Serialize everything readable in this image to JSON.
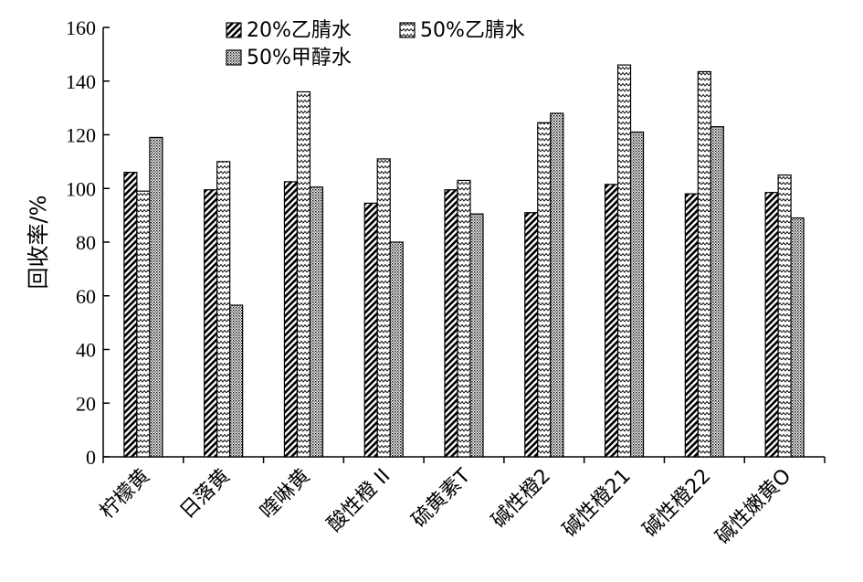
{
  "chart_data": {
    "type": "bar",
    "title": "",
    "xlabel": "",
    "ylabel": "回收率/%",
    "ylim": [
      0,
      160
    ],
    "yticks": [
      0,
      20,
      40,
      60,
      80,
      100,
      120,
      140,
      160
    ],
    "grid": false,
    "legend_position": "top",
    "categories": [
      "柠檬黄",
      "日落黄",
      "喹啉黄",
      "酸性橙 II",
      "硫黄素T",
      "碱性橙2",
      "碱性橙21",
      "碱性橙22",
      "碱性嫩黄O"
    ],
    "series": [
      {
        "name": "20%乙腈水",
        "pattern": "diagonal-hatch",
        "values": [
          106,
          99.5,
          102.5,
          94.5,
          99.5,
          91,
          101.5,
          98,
          98.5
        ]
      },
      {
        "name": "50%乙腈水",
        "pattern": "zigzag",
        "values": [
          99,
          110,
          136,
          111,
          103,
          124.5,
          146,
          143.5,
          105
        ]
      },
      {
        "name": "50%甲醇水",
        "pattern": "dotted",
        "values": [
          119,
          56.5,
          100.5,
          80,
          90.5,
          128,
          121,
          123,
          89
        ]
      }
    ],
    "colors": {
      "ink": "#000000",
      "background": "#ffffff"
    }
  }
}
